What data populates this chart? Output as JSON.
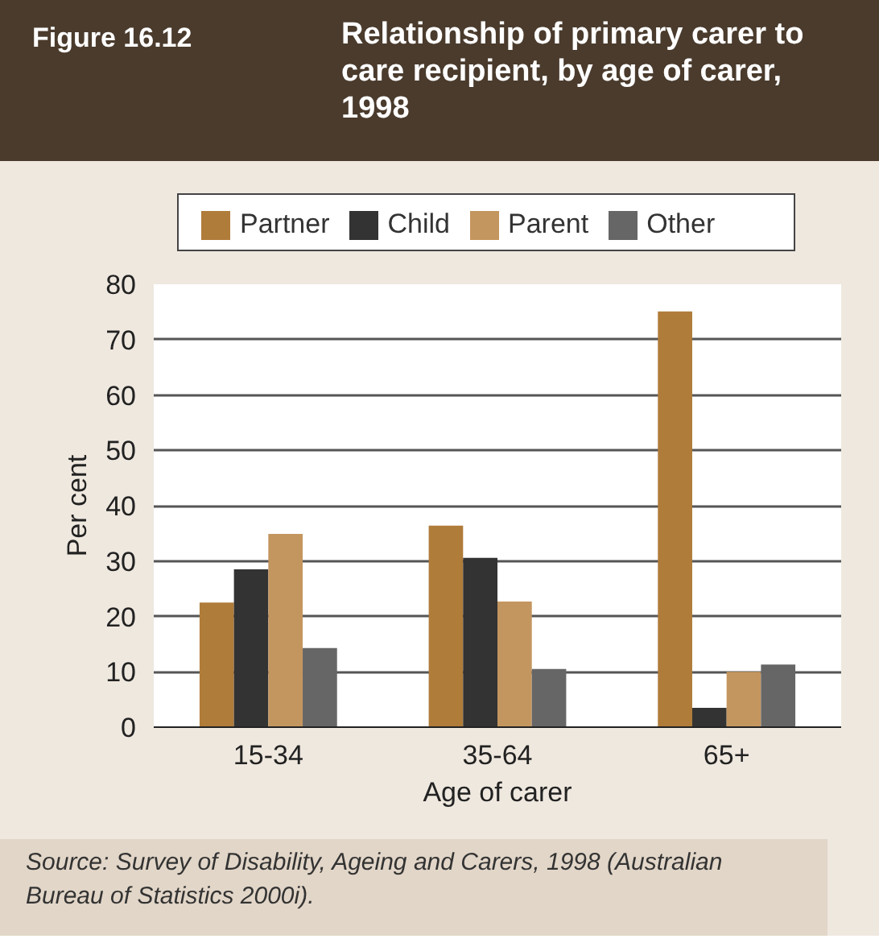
{
  "chart_data": {
    "type": "bar",
    "title": "Relationship of primary carer to care recipient, by age of carer, 1998",
    "xlabel": "Age of carer",
    "ylabel": "Per cent",
    "categories": [
      "15-34",
      "35-64",
      "65+"
    ],
    "series": [
      {
        "name": "Partner",
        "color": "#b07c3a",
        "values": [
          22.5,
          36.4,
          75.1
        ]
      },
      {
        "name": "Child",
        "color": "#333333",
        "values": [
          28.5,
          30.6,
          3.5
        ]
      },
      {
        "name": "Parent",
        "color": "#c4965f",
        "values": [
          34.9,
          22.7,
          10.0
        ]
      },
      {
        "name": "Other",
        "color": "#666666",
        "values": [
          14.3,
          10.5,
          11.3
        ]
      }
    ],
    "ylim": [
      0,
      80
    ],
    "yticks": [
      0,
      10,
      20,
      30,
      40,
      50,
      60,
      70,
      80
    ],
    "grid": "y",
    "legend": "top",
    "annotations": [
      "Figure 16.12",
      "Source: Survey of Disability, Ageing and Carers, 1998 (Australian Bureau of Statistics 2000i)."
    ]
  }
}
